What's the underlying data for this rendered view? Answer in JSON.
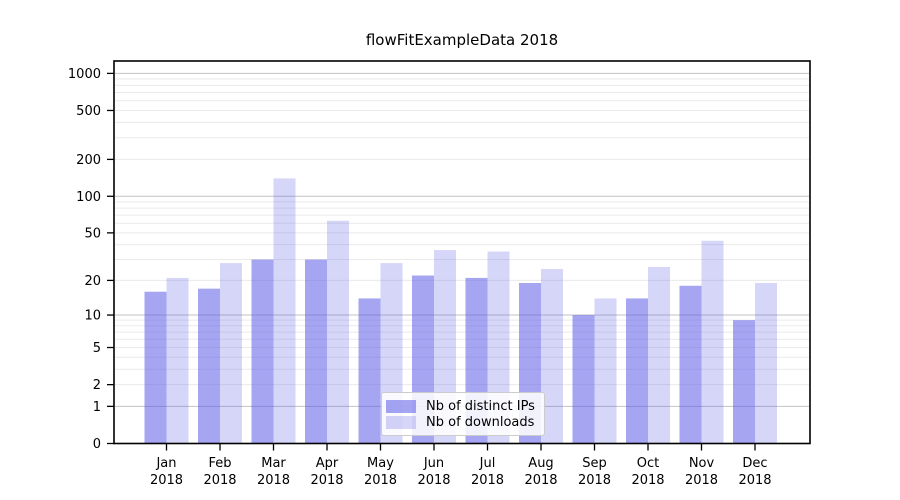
{
  "chart_data": {
    "type": "bar",
    "title": "flowFitExampleData 2018",
    "categories": [
      "Jan",
      "Feb",
      "Mar",
      "Apr",
      "May",
      "Jun",
      "Jul",
      "Aug",
      "Sep",
      "Oct",
      "Nov",
      "Dec"
    ],
    "year_label": "2018",
    "series": [
      {
        "name": "Nb of distinct IPs",
        "color": "rgba(91,91,231,0.55)",
        "values": [
          16,
          17,
          30,
          30,
          14,
          22,
          21,
          19,
          10,
          14,
          18,
          9
        ]
      },
      {
        "name": "Nb of downloads",
        "color": "rgba(91,91,231,0.25)",
        "values": [
          21,
          28,
          140,
          63,
          28,
          36,
          35,
          25,
          14,
          26,
          43,
          19
        ]
      }
    ],
    "xlabel": "",
    "ylabel": "",
    "yscale": "log1p",
    "y_ticks": [
      0,
      1,
      2,
      5,
      10,
      20,
      50,
      100,
      200,
      500,
      1000
    ],
    "ylim": [
      0,
      1260
    ],
    "grid": true,
    "legend_position": "lower-center-inside",
    "colors": {
      "major_grid": "#c2c2c2",
      "minor_grid": "#eaeaea",
      "axis": "#000000",
      "bar_base": "#5b5be7"
    }
  }
}
